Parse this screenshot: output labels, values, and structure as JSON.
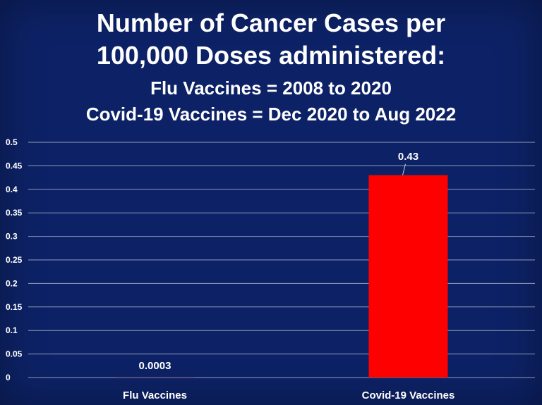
{
  "chart_data": {
    "type": "bar",
    "title": "Number of Cancer Cases per 100,000 Doses administered:",
    "title_lines": [
      "Number of Cancer Cases per",
      "100,000 Doses administered:"
    ],
    "subtitle_lines": [
      "Flu Vaccines = 2008 to 2020",
      "Covid-19 Vaccines = Dec 2020 to Aug 2022"
    ],
    "categories": [
      "Flu Vaccines",
      "Covid-19 Vaccines"
    ],
    "values": [
      0.0003,
      0.43
    ],
    "data_labels": [
      "0.0003",
      "0.43"
    ],
    "bar_colors": [
      "#ff0000",
      "#ff0000"
    ],
    "ylim": [
      0,
      0.5
    ],
    "y_ticks": [
      0,
      0.05,
      0.1,
      0.15,
      0.2,
      0.25,
      0.3,
      0.35,
      0.4,
      0.45,
      0.5
    ],
    "y_tick_labels": [
      "0",
      "0.05",
      "0.1",
      "0.15",
      "0.2",
      "0.25",
      "0.3",
      "0.35",
      "0.4",
      "0.45",
      "0.5"
    ],
    "xlabel": "",
    "ylabel": "",
    "grid": true,
    "legend": "none",
    "background_color": "#0d2266",
    "text_color": "#ffffff",
    "grid_color": "#ffffff"
  }
}
